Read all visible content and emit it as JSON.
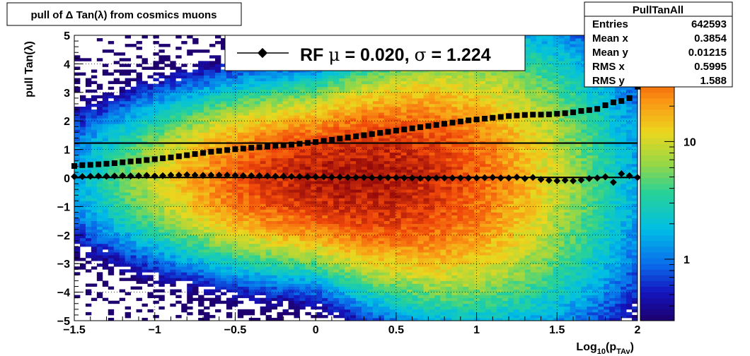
{
  "chart_data": {
    "type": "heatmap",
    "title": "pull of Δ Tan(λ) from cosmics muons",
    "xlabel": "Log",
    "xlabel_sub": "10",
    "xlabel_rest": "(p",
    "xlabel_sub2": "TAv",
    "xlabel_close": ")",
    "ylabel": "pull Tan(λ)",
    "xlim": [
      -1.5,
      2
    ],
    "ylim": [
      -5,
      5
    ],
    "x_ticks": [
      -1.5,
      -1,
      -0.5,
      0,
      0.5,
      1,
      1.5,
      2
    ],
    "x_tick_labels": [
      "−1.5",
      "−1",
      "−0.5",
      "0",
      "0.5",
      "1",
      "1.5",
      "2"
    ],
    "y_ticks": [
      -5,
      -4,
      -3,
      -2,
      -1,
      0,
      1,
      2,
      3,
      4,
      5
    ],
    "y_tick_labels": [
      "−5",
      "−4",
      "−3",
      "−2",
      "−1",
      "0",
      "1",
      "2",
      "3",
      "4",
      "5"
    ],
    "grid": true,
    "z_scale": "log",
    "z_ticks": [
      1,
      10
    ],
    "z_tick_labels": [
      "1",
      "10"
    ],
    "z_range": [
      0.3,
      80
    ],
    "legend": {
      "position": "top-center",
      "text_pre": "RF ",
      "mu_symbol": "μ",
      "mu_text": " =  0.020, ",
      "sigma_symbol": "σ",
      "sigma_text": " =   1.224"
    },
    "stats_box": {
      "title": "PullTanAll",
      "rows": [
        {
          "label": "Entries",
          "value": "642593"
        },
        {
          "label": "Mean x",
          "value": "0.3854"
        },
        {
          "label": "Mean y",
          "value": "0.01215"
        },
        {
          "label": "RMS x",
          "value": "0.5995"
        },
        {
          "label": "RMS y",
          "value": "1.588"
        }
      ]
    },
    "fit_lines": [
      {
        "name": "μ",
        "y": 0.02
      },
      {
        "name": "σ",
        "y": 1.224
      }
    ],
    "series": [
      {
        "marker": "diamond",
        "x": [
          -1.5,
          -1.45,
          -1.4,
          -1.35,
          -1.3,
          -1.25,
          -1.2,
          -1.15,
          -1.1,
          -1.05,
          -1.0,
          -0.95,
          -0.9,
          -0.85,
          -0.8,
          -0.75,
          -0.7,
          -0.65,
          -0.6,
          -0.55,
          -0.5,
          -0.45,
          -0.4,
          -0.35,
          -0.3,
          -0.25,
          -0.2,
          -0.15,
          -0.1,
          -0.05,
          0.0,
          0.05,
          0.1,
          0.15,
          0.2,
          0.25,
          0.3,
          0.35,
          0.4,
          0.45,
          0.5,
          0.55,
          0.6,
          0.65,
          0.7,
          0.75,
          0.8,
          0.85,
          0.9,
          0.95,
          1.0,
          1.05,
          1.1,
          1.15,
          1.2,
          1.25,
          1.3,
          1.35,
          1.4,
          1.45,
          1.5,
          1.55,
          1.6,
          1.65,
          1.7,
          1.75,
          1.8,
          1.85,
          1.9,
          1.95,
          2.0
        ],
        "y": [
          0.05,
          0.05,
          0.06,
          0.07,
          0.06,
          0.07,
          0.08,
          0.07,
          0.08,
          0.09,
          0.07,
          0.08,
          0.1,
          0.1,
          0.11,
          0.1,
          0.09,
          0.1,
          0.1,
          0.1,
          0.09,
          0.08,
          0.08,
          0.08,
          0.07,
          0.06,
          0.06,
          0.05,
          0.05,
          0.04,
          0.04,
          0.04,
          0.03,
          0.03,
          0.02,
          0.02,
          0.02,
          0.01,
          0.01,
          0.01,
          0.01,
          0.0,
          0.0,
          -0.01,
          -0.01,
          0.0,
          0.0,
          0.0,
          0.0,
          0.0,
          0.0,
          0.01,
          0.02,
          0.0,
          0.0,
          0.03,
          -0.02,
          0.02,
          -0.05,
          -0.08,
          -0.1,
          -0.08,
          -0.1,
          -0.07,
          -0.02,
          0.0,
          0.04,
          -0.15,
          0.15,
          0.08,
          0.02
        ]
      },
      {
        "marker": "square",
        "x": [
          -1.5,
          -1.45,
          -1.4,
          -1.35,
          -1.3,
          -1.25,
          -1.2,
          -1.15,
          -1.1,
          -1.05,
          -1.0,
          -0.95,
          -0.9,
          -0.85,
          -0.8,
          -0.75,
          -0.7,
          -0.65,
          -0.6,
          -0.55,
          -0.5,
          -0.45,
          -0.4,
          -0.35,
          -0.3,
          -0.25,
          -0.2,
          -0.15,
          -0.1,
          -0.05,
          0.0,
          0.05,
          0.1,
          0.15,
          0.2,
          0.25,
          0.3,
          0.35,
          0.4,
          0.45,
          0.5,
          0.55,
          0.6,
          0.65,
          0.7,
          0.75,
          0.8,
          0.85,
          0.9,
          0.95,
          1.0,
          1.05,
          1.1,
          1.15,
          1.2,
          1.25,
          1.3,
          1.35,
          1.4,
          1.45,
          1.5,
          1.55,
          1.6,
          1.65,
          1.7,
          1.75,
          1.8,
          1.85,
          1.9,
          1.95,
          2.0
        ],
        "y": [
          0.42,
          0.45,
          0.46,
          0.48,
          0.5,
          0.52,
          0.55,
          0.58,
          0.6,
          0.63,
          0.66,
          0.69,
          0.72,
          0.76,
          0.8,
          0.84,
          0.88,
          0.92,
          0.95,
          0.98,
          1.01,
          1.03,
          1.06,
          1.08,
          1.1,
          1.13,
          1.15,
          1.17,
          1.2,
          1.23,
          1.26,
          1.3,
          1.34,
          1.38,
          1.42,
          1.46,
          1.5,
          1.54,
          1.58,
          1.62,
          1.66,
          1.7,
          1.74,
          1.78,
          1.82,
          1.86,
          1.9,
          1.94,
          1.98,
          2.02,
          2.05,
          2.08,
          2.11,
          2.14,
          2.17,
          2.19,
          2.21,
          2.22,
          2.22,
          2.23,
          2.25,
          2.27,
          2.3,
          2.35,
          2.38,
          2.42,
          2.55,
          2.65,
          2.7,
          2.8,
          3.2
        ]
      }
    ]
  }
}
